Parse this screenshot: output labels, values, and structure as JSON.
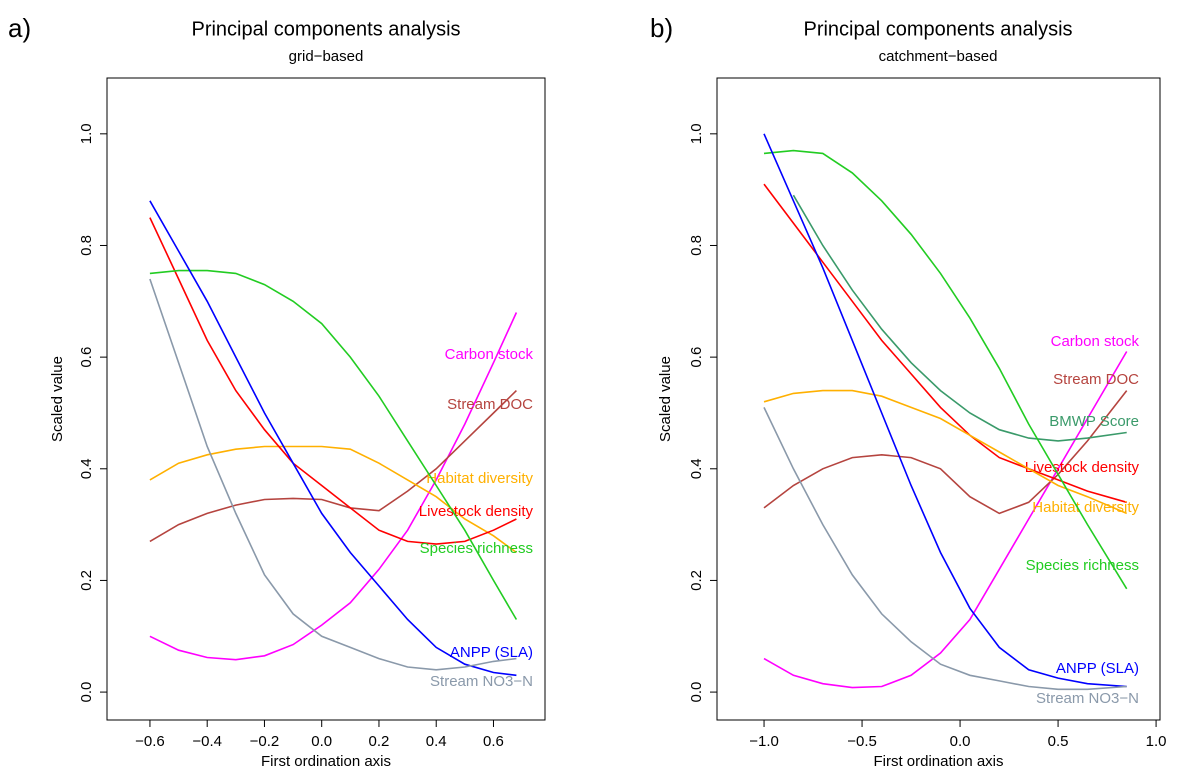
{
  "chart_data": [
    {
      "type": "line",
      "panel": "a)",
      "title": "Principal components analysis",
      "subtitle": "grid−based",
      "x_label": "First ordination axis",
      "y_label": "Scaled value",
      "xlim": [
        -0.75,
        0.78
      ],
      "ylim": [
        -0.05,
        1.1
      ],
      "xticks": [
        {
          "value": -0.6,
          "label": "−0.6"
        },
        {
          "value": -0.4,
          "label": "−0.4"
        },
        {
          "value": -0.2,
          "label": "−0.2"
        },
        {
          "value": 0,
          "label": "0.0"
        },
        0.2,
        0.4,
        0.6
      ],
      "yticks": [
        {
          "value": 0,
          "label": "0.0"
        },
        0.2,
        0.4,
        0.6,
        0.8,
        {
          "value": 1,
          "label": "1.0"
        }
      ],
      "x": [
        -0.6,
        -0.5,
        -0.4,
        -0.3,
        -0.2,
        -0.1,
        0,
        0.1,
        0.2,
        0.3,
        0.4,
        0.5,
        0.6,
        0.68
      ],
      "series": [
        {
          "name": "Carbon stock",
          "color": "#ff00ff",
          "values": [
            0.1,
            0.075,
            0.062,
            0.058,
            0.065,
            0.085,
            0.12,
            0.16,
            0.22,
            0.29,
            0.38,
            0.48,
            0.59,
            0.68
          ]
        },
        {
          "name": "Stream DOC",
          "color": "#b5443f",
          "values": [
            0.27,
            0.3,
            0.32,
            0.335,
            0.345,
            0.347,
            0.345,
            0.33,
            0.325,
            0.36,
            0.4,
            0.45,
            0.5,
            0.54
          ]
        },
        {
          "name": "Habitat diversity",
          "color": "#ffb000",
          "values": [
            0.38,
            0.41,
            0.425,
            0.435,
            0.44,
            0.44,
            0.44,
            0.435,
            0.41,
            0.38,
            0.35,
            0.31,
            0.28,
            0.25
          ]
        },
        {
          "name": "Livestock density",
          "color": "#ff0000",
          "values": [
            0.85,
            0.74,
            0.63,
            0.54,
            0.47,
            0.41,
            0.37,
            0.33,
            0.29,
            0.27,
            0.265,
            0.27,
            0.29,
            0.31
          ]
        },
        {
          "name": "Species richness",
          "color": "#22cc22",
          "values": [
            0.75,
            0.755,
            0.755,
            0.75,
            0.73,
            0.7,
            0.66,
            0.6,
            0.53,
            0.45,
            0.37,
            0.29,
            0.2,
            0.13
          ]
        },
        {
          "name": "ANPP (SLA)",
          "color": "#0000ff",
          "values": [
            0.88,
            0.79,
            0.7,
            0.6,
            0.5,
            0.41,
            0.32,
            0.25,
            0.19,
            0.13,
            0.08,
            0.05,
            0.035,
            0.03
          ]
        },
        {
          "name": "Stream NO3−N",
          "color": "#8a99aa",
          "values": [
            0.74,
            0.59,
            0.44,
            0.32,
            0.21,
            0.14,
            0.1,
            0.08,
            0.06,
            0.045,
            0.04,
            0.045,
            0.055,
            0.06
          ]
        }
      ]
    },
    {
      "type": "line",
      "panel": "b)",
      "title": "Principal components analysis",
      "subtitle": "catchment−based",
      "x_label": "First ordination axis",
      "y_label": "Scaled value",
      "xlim": [
        -1.24,
        1.02
      ],
      "ylim": [
        -0.05,
        1.1
      ],
      "xticks": [
        {
          "value": -1,
          "label": "−1.0"
        },
        {
          "value": -0.5,
          "label": "−0.5"
        },
        {
          "value": 0,
          "label": "0.0"
        },
        0.5,
        {
          "value": 1,
          "label": "1.0"
        }
      ],
      "yticks": [
        {
          "value": 0,
          "label": "0.0"
        },
        0.2,
        0.4,
        0.6,
        0.8,
        {
          "value": 1,
          "label": "1.0"
        }
      ],
      "x": [
        -1.0,
        -0.85,
        -0.7,
        -0.55,
        -0.4,
        -0.25,
        -0.1,
        0.05,
        0.2,
        0.35,
        0.5,
        0.65,
        0.85
      ],
      "series": [
        {
          "name": "Carbon stock",
          "color": "#ff00ff",
          "values": [
            0.06,
            0.03,
            0.015,
            0.008,
            0.01,
            0.03,
            0.07,
            0.13,
            0.22,
            0.31,
            0.4,
            0.49,
            0.61
          ]
        },
        {
          "name": "Stream DOC",
          "color": "#b5443f",
          "values": [
            0.33,
            0.37,
            0.4,
            0.42,
            0.425,
            0.42,
            0.4,
            0.35,
            0.32,
            0.34,
            0.39,
            0.45,
            0.54
          ]
        },
        {
          "name": "BMWP Score",
          "color": "#3a9a6a",
          "values": [
            null,
            0.89,
            0.8,
            0.72,
            0.65,
            0.59,
            0.54,
            0.5,
            0.47,
            0.455,
            0.45,
            0.455,
            0.465
          ]
        },
        {
          "name": "Livestock density",
          "color": "#ff0000",
          "values": [
            0.91,
            0.84,
            0.77,
            0.7,
            0.63,
            0.57,
            0.51,
            0.46,
            0.42,
            0.4,
            0.38,
            0.36,
            0.34
          ]
        },
        {
          "name": "Habitat diversity",
          "color": "#ffb000",
          "values": [
            0.52,
            0.535,
            0.54,
            0.54,
            0.53,
            0.51,
            0.49,
            0.46,
            0.43,
            0.4,
            0.37,
            0.35,
            0.32
          ]
        },
        {
          "name": "Species richness",
          "color": "#22cc22",
          "values": [
            0.965,
            0.97,
            0.965,
            0.93,
            0.88,
            0.82,
            0.75,
            0.67,
            0.58,
            0.48,
            0.39,
            0.3,
            0.185
          ]
        },
        {
          "name": "ANPP (SLA)",
          "color": "#0000ff",
          "values": [
            1.0,
            0.88,
            0.76,
            0.63,
            0.5,
            0.37,
            0.25,
            0.15,
            0.08,
            0.04,
            0.025,
            0.015,
            0.01
          ]
        },
        {
          "name": "Stream NO3−N",
          "color": "#8a99aa",
          "values": [
            0.51,
            0.4,
            0.3,
            0.21,
            0.14,
            0.09,
            0.05,
            0.03,
            0.02,
            0.01,
            0.005,
            0.005,
            0.01
          ]
        }
      ]
    }
  ]
}
